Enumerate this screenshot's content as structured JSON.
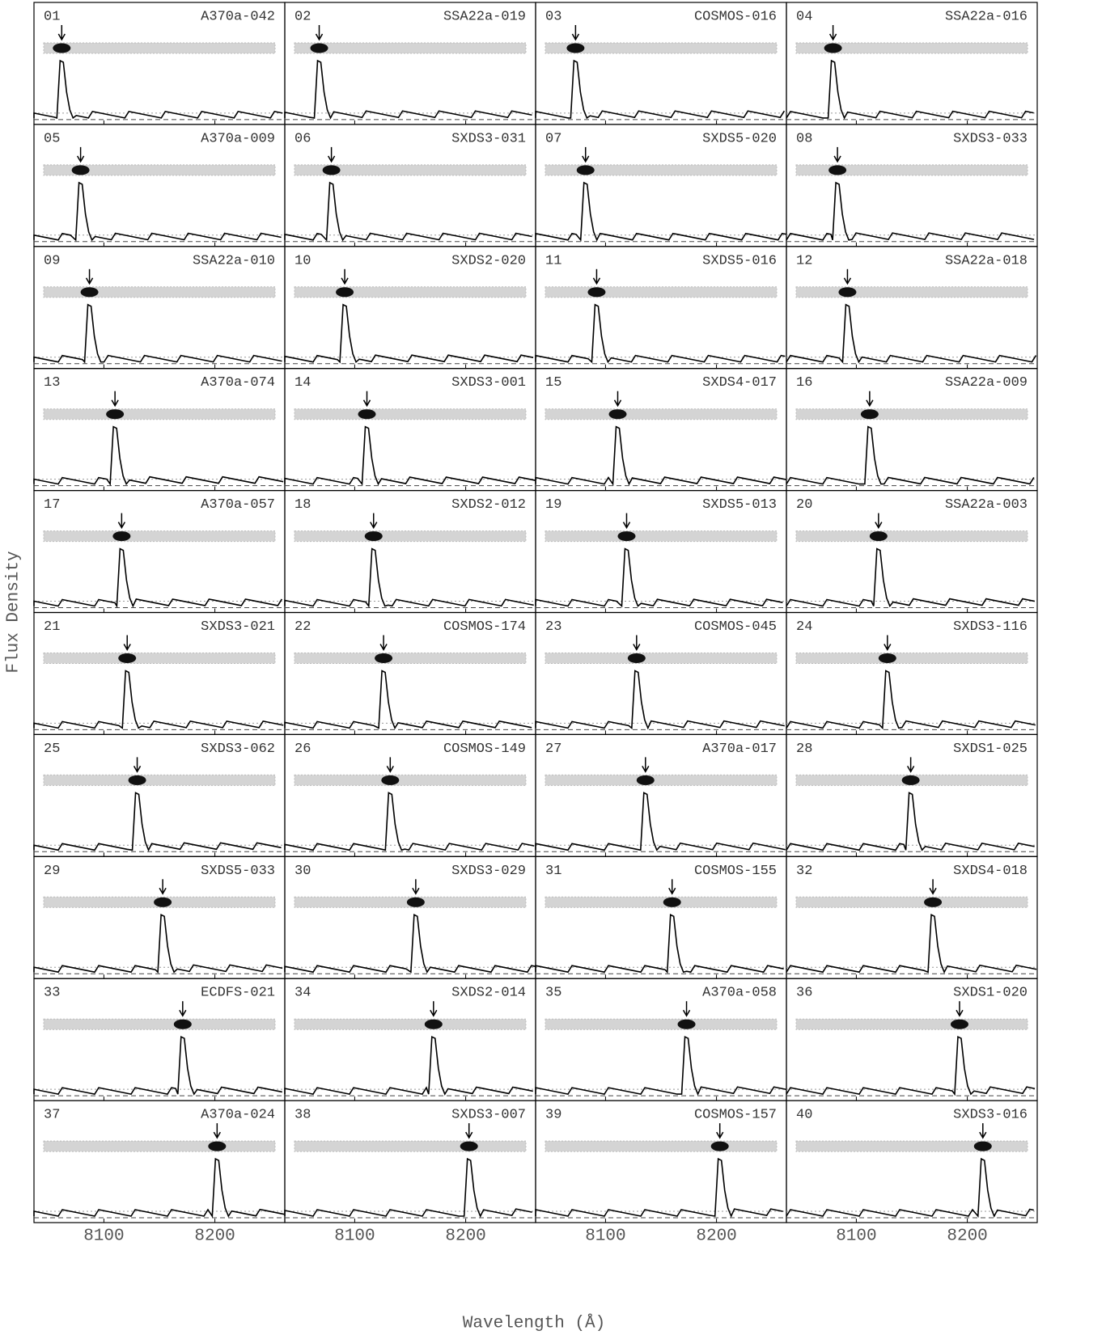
{
  "chart_data": {
    "type": "spectra-grid",
    "xlabel": "Wavelength (Å)",
    "ylabel": "Flux Density",
    "xlim": [
      8037,
      8263
    ],
    "xticks": [
      8100,
      8200
    ],
    "panels": [
      {
        "label": "01",
        "name": "A370a-042",
        "line": 8062
      },
      {
        "label": "02",
        "name": "SSA22a-019",
        "line": 8068
      },
      {
        "label": "03",
        "name": "COSMOS-016",
        "line": 8073
      },
      {
        "label": "04",
        "name": "SSA22a-016",
        "line": 8079
      },
      {
        "label": "05",
        "name": "A370a-009",
        "line": 8079
      },
      {
        "label": "06",
        "name": "SXDS3-031",
        "line": 8079
      },
      {
        "label": "07",
        "name": "SXDS5-020",
        "line": 8082
      },
      {
        "label": "08",
        "name": "SXDS3-033",
        "line": 8083
      },
      {
        "label": "09",
        "name": "SSA22a-010",
        "line": 8087
      },
      {
        "label": "10",
        "name": "SXDS2-020",
        "line": 8091
      },
      {
        "label": "11",
        "name": "SXDS5-016",
        "line": 8092
      },
      {
        "label": "12",
        "name": "SSA22a-018",
        "line": 8092
      },
      {
        "label": "13",
        "name": "A370a-074",
        "line": 8110
      },
      {
        "label": "14",
        "name": "SXDS3-001",
        "line": 8111
      },
      {
        "label": "15",
        "name": "SXDS4-017",
        "line": 8111
      },
      {
        "label": "16",
        "name": "SSA22a-009",
        "line": 8112
      },
      {
        "label": "17",
        "name": "A370a-057",
        "line": 8116
      },
      {
        "label": "18",
        "name": "SXDS2-012",
        "line": 8117
      },
      {
        "label": "19",
        "name": "SXDS5-013",
        "line": 8119
      },
      {
        "label": "20",
        "name": "SSA22a-003",
        "line": 8120
      },
      {
        "label": "21",
        "name": "SXDS3-021",
        "line": 8121
      },
      {
        "label": "22",
        "name": "COSMOS-174",
        "line": 8126
      },
      {
        "label": "23",
        "name": "COSMOS-045",
        "line": 8128
      },
      {
        "label": "24",
        "name": "SXDS3-116",
        "line": 8128
      },
      {
        "label": "25",
        "name": "SXDS3-062",
        "line": 8130
      },
      {
        "label": "26",
        "name": "COSMOS-149",
        "line": 8132
      },
      {
        "label": "27",
        "name": "A370a-017",
        "line": 8136
      },
      {
        "label": "28",
        "name": "SXDS1-025",
        "line": 8149
      },
      {
        "label": "29",
        "name": "SXDS5-033",
        "line": 8153
      },
      {
        "label": "30",
        "name": "SXDS3-029",
        "line": 8155
      },
      {
        "label": "31",
        "name": "COSMOS-155",
        "line": 8160
      },
      {
        "label": "32",
        "name": "SXDS4-018",
        "line": 8169
      },
      {
        "label": "33",
        "name": "ECDFS-021",
        "line": 8171
      },
      {
        "label": "34",
        "name": "SXDS2-014",
        "line": 8171
      },
      {
        "label": "35",
        "name": "A370a-058",
        "line": 8173
      },
      {
        "label": "36",
        "name": "SXDS1-020",
        "line": 8193
      },
      {
        "label": "37",
        "name": "A370a-024",
        "line": 8202
      },
      {
        "label": "38",
        "name": "SXDS3-007",
        "line": 8203
      },
      {
        "label": "39",
        "name": "COSMOS-157",
        "line": 8203
      },
      {
        "label": "40",
        "name": "SXDS3-016",
        "line": 8214
      }
    ]
  }
}
